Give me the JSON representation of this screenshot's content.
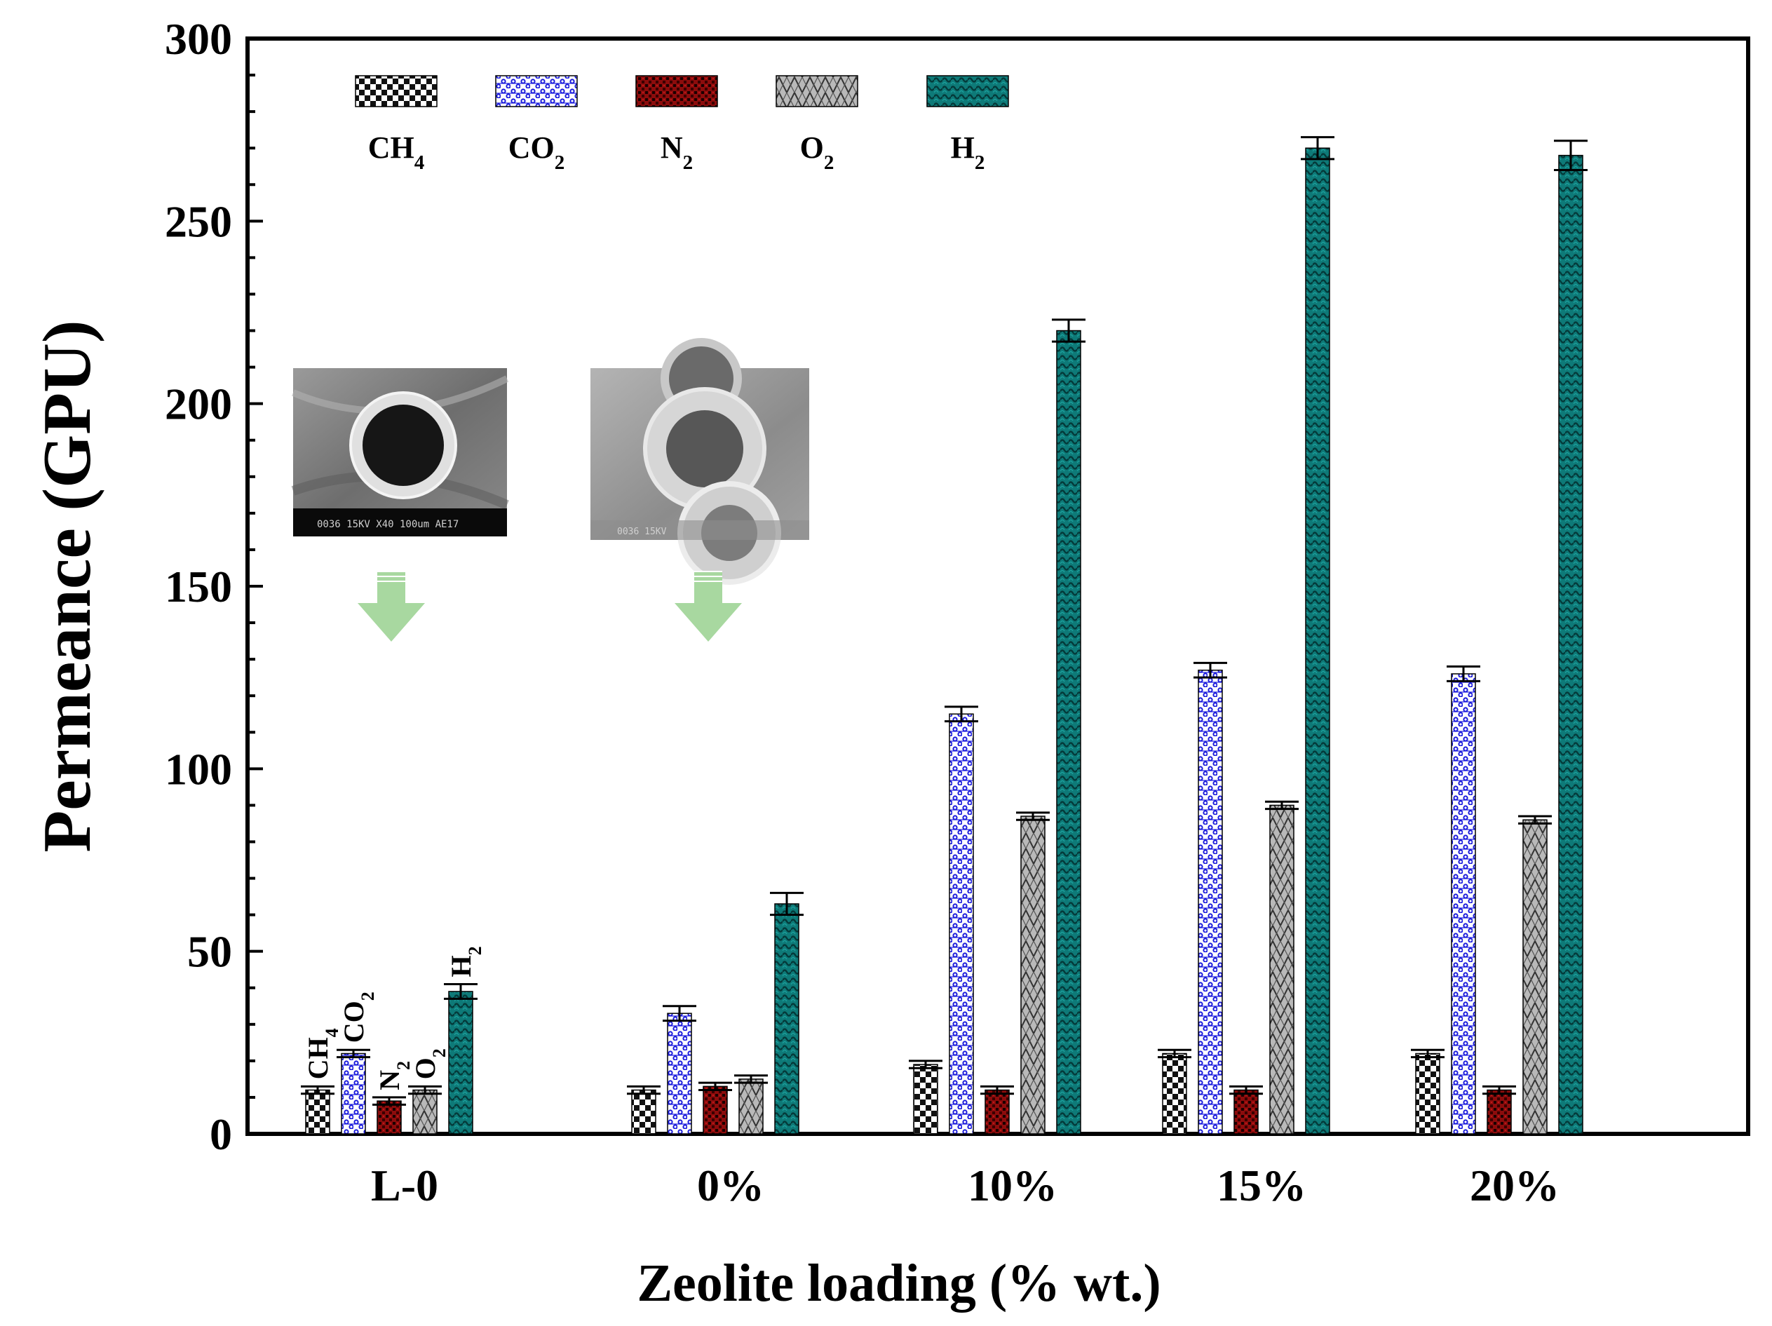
{
  "chart_data": {
    "type": "bar",
    "title": "",
    "xlabel": "Zeolite loading (% wt.)",
    "ylabel": "Permeance (GPU)",
    "ylim": [
      0,
      300
    ],
    "yticks": [
      "0",
      "50",
      "100",
      "150",
      "200",
      "250",
      "300"
    ],
    "categories": [
      "L-0",
      "0%",
      "10%",
      "15%",
      "20%"
    ],
    "legend_position": "top-left",
    "series": [
      {
        "name": "CH4",
        "base": "CH",
        "sub": "4",
        "color": "#111111",
        "values": [
          12,
          12,
          19,
          22,
          22
        ],
        "errors": [
          1,
          1,
          1,
          1,
          1
        ]
      },
      {
        "name": "CO2",
        "base": "CO",
        "sub": "2",
        "color": "#1a1adc",
        "values": [
          22,
          33,
          115,
          127,
          126
        ],
        "errors": [
          1,
          2,
          2,
          2,
          2
        ]
      },
      {
        "name": "N2",
        "base": "N",
        "sub": "2",
        "color": "#8c0c0c",
        "values": [
          9,
          13,
          12,
          12,
          12
        ],
        "errors": [
          1,
          1,
          1,
          1,
          1
        ]
      },
      {
        "name": "O2",
        "base": "O",
        "sub": "2",
        "color": "#b9b9b9",
        "values": [
          12,
          15,
          87,
          90,
          86
        ],
        "errors": [
          1,
          1,
          1,
          1,
          1
        ]
      },
      {
        "name": "H2",
        "base": "H",
        "sub": "2",
        "color": "#0e7a78",
        "values": [
          39,
          63,
          220,
          270,
          268
        ],
        "errors": [
          2,
          3,
          3,
          3,
          4
        ]
      }
    ],
    "annotations": [
      {
        "text": "CH",
        "sub": "4",
        "group": "L-0",
        "series": "CH4"
      },
      {
        "text": "CO",
        "sub": "2",
        "group": "L-0",
        "series": "CO2"
      },
      {
        "text": "N",
        "sub": "2",
        "group": "L-0",
        "series": "N2"
      },
      {
        "text": "O",
        "sub": "2",
        "group": "L-0",
        "series": "O2"
      },
      {
        "text": "H",
        "sub": "2",
        "group": "L-0",
        "series": "H2"
      }
    ],
    "insets": [
      {
        "name": "sem-image-l0",
        "caption": "0036 15KV      X40 100um AE17",
        "arrow_color": "#a8d8a0"
      },
      {
        "name": "sem-image-mmm",
        "caption": "0036 15KV",
        "arrow_color": "#a8d8a0"
      }
    ]
  }
}
